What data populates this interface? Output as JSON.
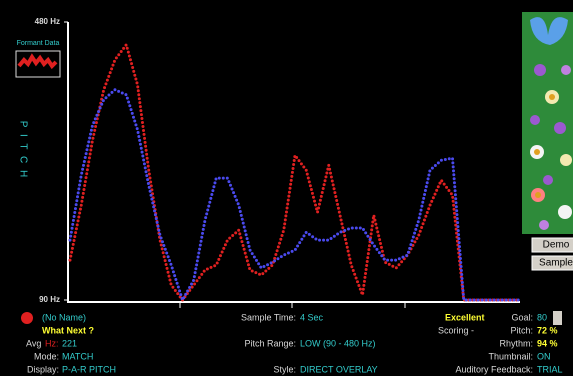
{
  "chart_data": {
    "type": "line",
    "y_label": "P I T C H",
    "formant_label": "Formant Data",
    "ylim": [
      90,
      480
    ],
    "yticks": [
      {
        "value": 480,
        "label": "480 Hz"
      },
      {
        "value": 90,
        "label": "90 Hz"
      }
    ],
    "xlim": [
      0,
      4
    ],
    "x": [
      0,
      0.1,
      0.2,
      0.3,
      0.4,
      0.5,
      0.6,
      0.7,
      0.8,
      0.9,
      1.0,
      1.1,
      1.2,
      1.3,
      1.4,
      1.5,
      1.6,
      1.7,
      1.8,
      1.9,
      2.0,
      2.1,
      2.2,
      2.3,
      2.4,
      2.5,
      2.6,
      2.7,
      2.8,
      2.9,
      3.0,
      3.1,
      3.2,
      3.3,
      3.4,
      3.5,
      3.6,
      3.7,
      3.8,
      3.9,
      4.0
    ],
    "series": [
      {
        "color": "#e02020",
        "values": [
          146,
          223,
          314,
          385,
          427,
          448,
          392,
          272,
          174,
          111,
          90,
          111,
          132,
          139,
          174,
          188,
          132,
          125,
          139,
          188,
          293,
          272,
          213,
          279,
          209,
          139,
          97,
          209,
          143,
          135,
          153,
          181,
          223,
          258,
          237,
          90,
          90,
          90,
          90,
          90,
          90
        ]
      },
      {
        "color": "#4a4aee",
        "values": [
          174,
          265,
          335,
          371,
          385,
          378,
          329,
          251,
          181,
          139,
          90,
          118,
          202,
          261,
          261,
          223,
          160,
          135,
          143,
          153,
          160,
          185,
          174,
          174,
          185,
          191,
          191,
          167,
          146,
          146,
          153,
          202,
          272,
          286,
          289,
          90,
          90,
          90,
          90,
          90,
          90
        ]
      }
    ]
  },
  "panel": {
    "name": "(No Name)",
    "what_next": "What Next ?",
    "avg_label": "Avg",
    "avg_unit": "Hz:",
    "avg_value": "221",
    "mode_label": "Mode:",
    "mode_value": "MATCH",
    "display_label": "Display:",
    "display_value": "P-A-R PITCH",
    "sample_time_label": "Sample Time:",
    "sample_time_value": "4 Sec",
    "pitch_range_label": "Pitch Range:",
    "pitch_range_value": "LOW (90 - 480 Hz)",
    "style_label": "Style:",
    "style_value": "DIRECT OVERLAY",
    "rating": "Excellent",
    "scoring": "Scoring -",
    "goal_label": "Goal:",
    "goal_value": "80",
    "pitch_label": "Pitch:",
    "pitch_value": "72 %",
    "rhythm_label": "Rhythm:",
    "rhythm_value": "94 %",
    "thumbnail_label": "Thumbnail:",
    "thumbnail_value": "ON",
    "feedback_label": "Auditory Feedback:",
    "feedback_value": "TRIAL"
  },
  "buttons": {
    "demo": "Demo",
    "sample": "Sample"
  }
}
